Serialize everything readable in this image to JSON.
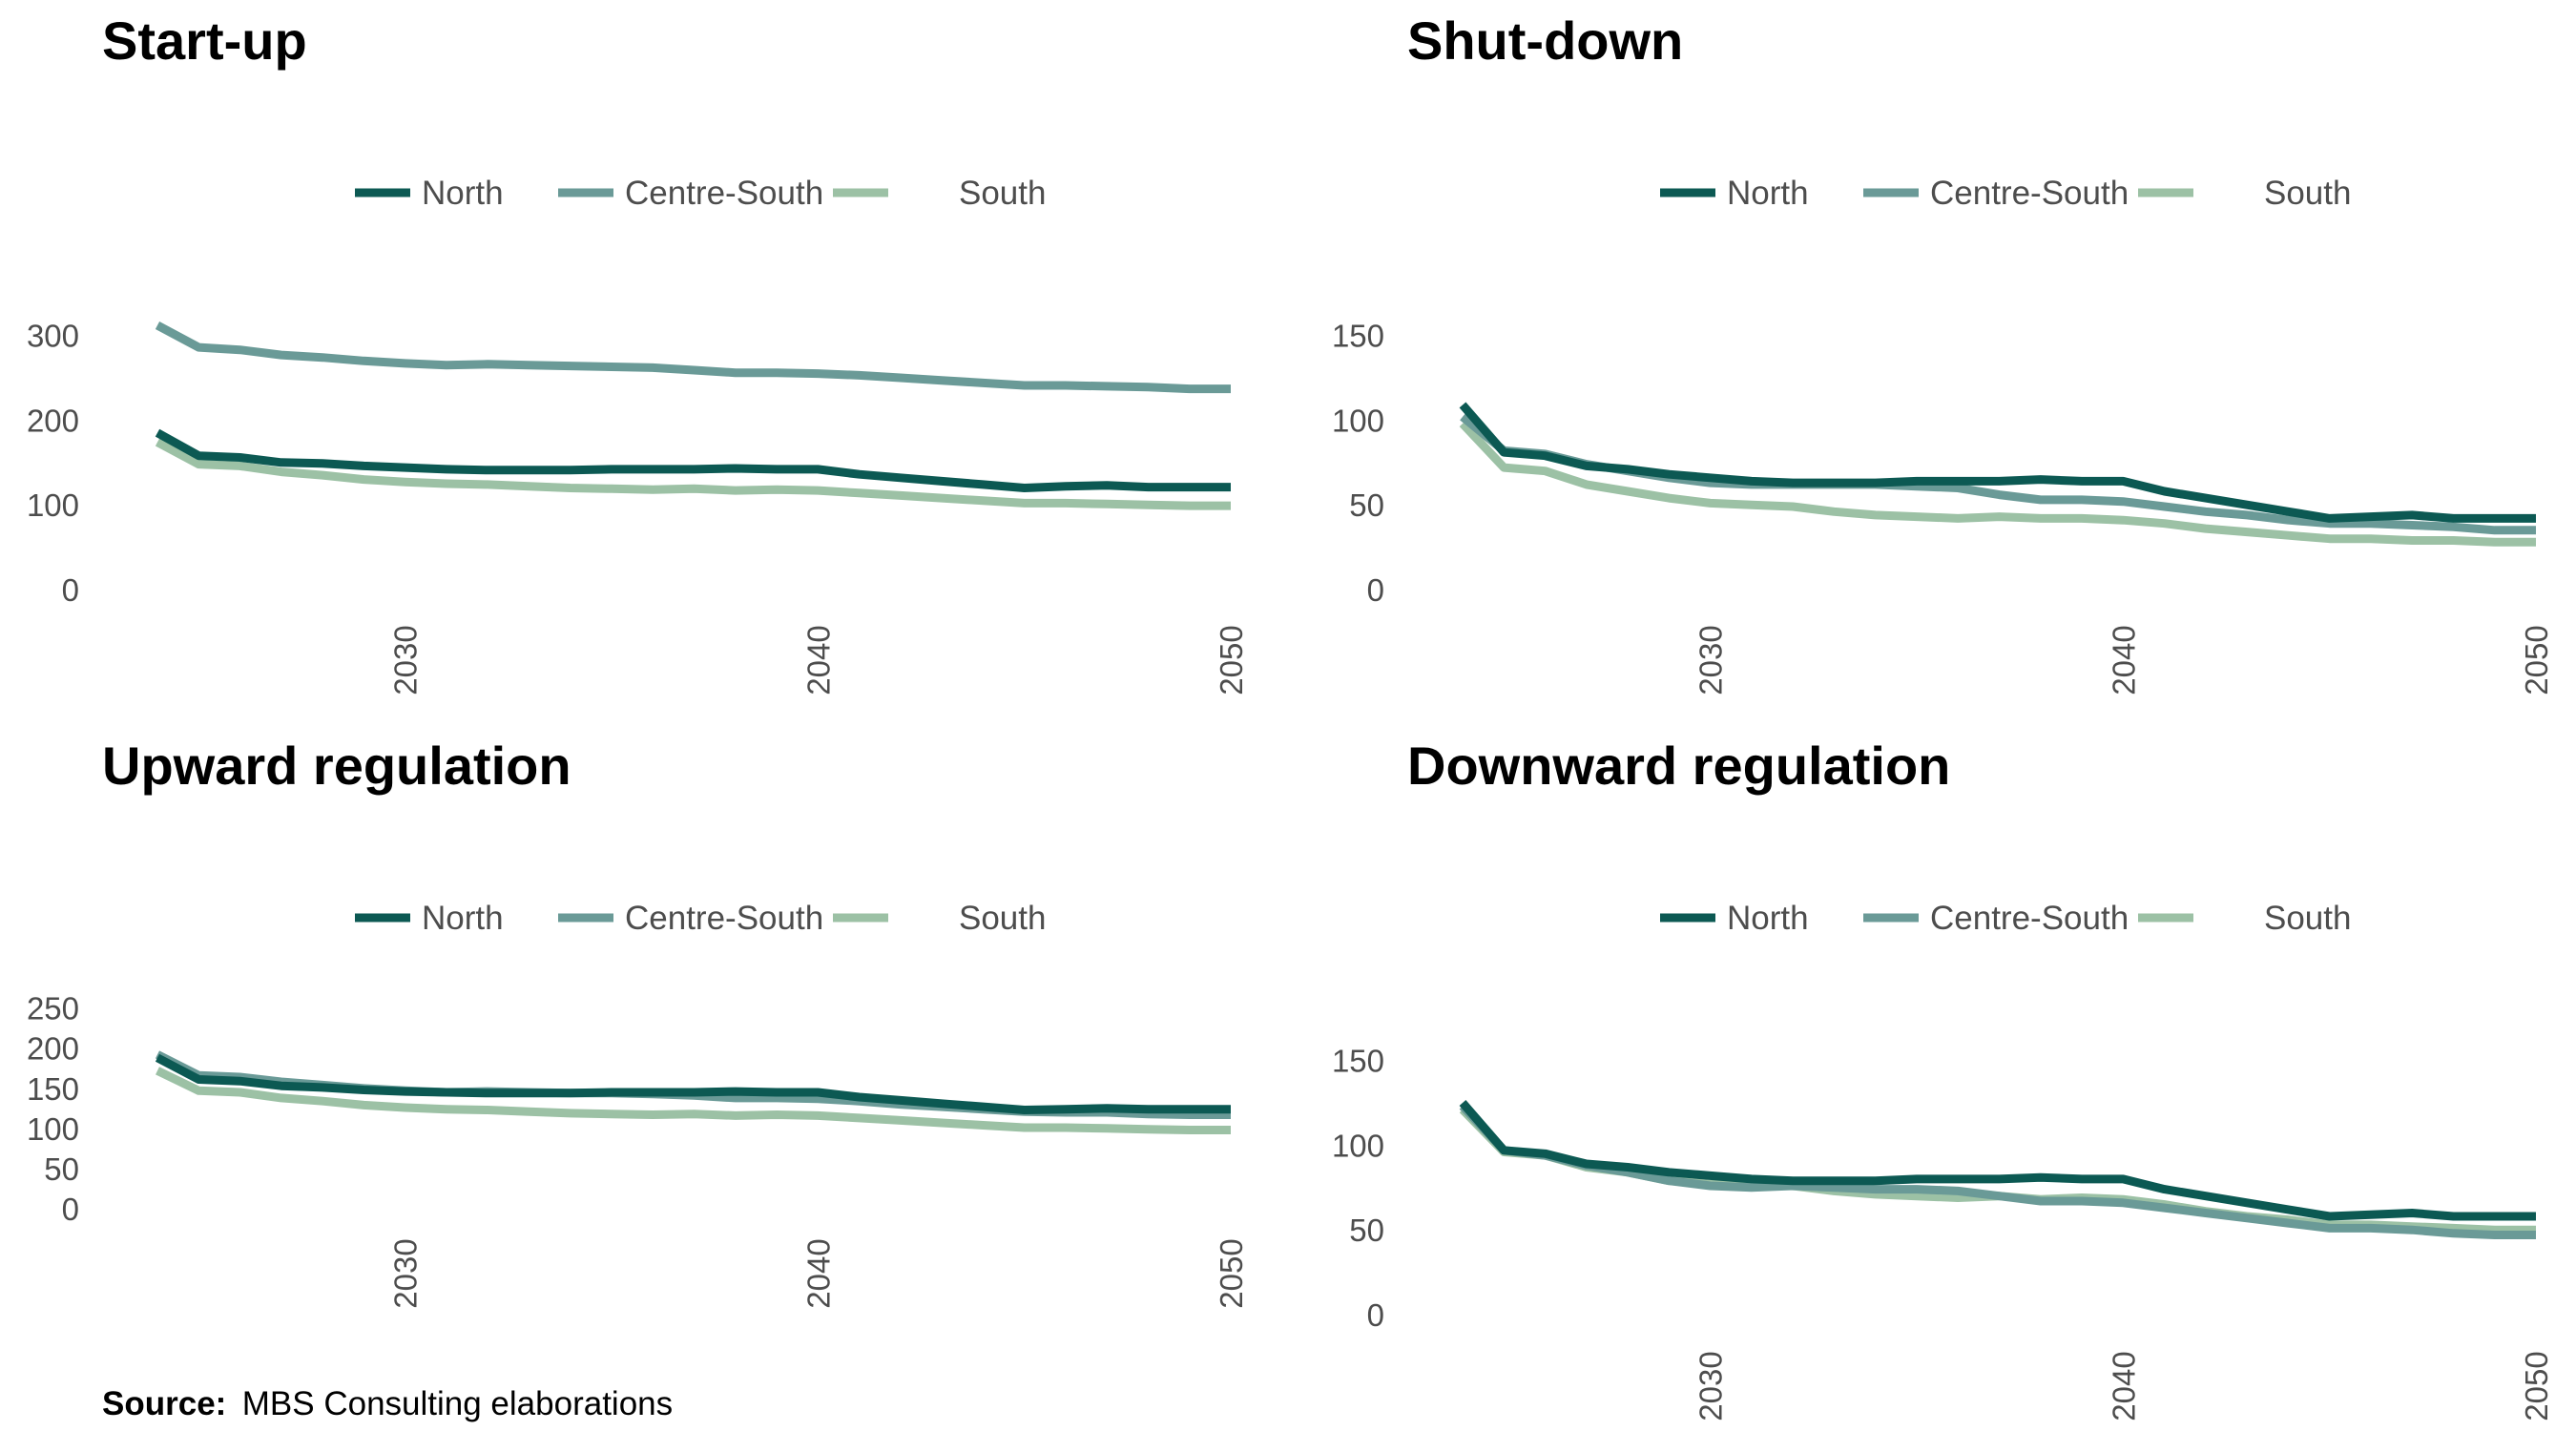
{
  "series_names": [
    "North",
    "Centre-South",
    "South"
  ],
  "colors": {
    "North": "#0c5953",
    "Centre-South": "#6a9a97",
    "South": "#9cc1a5"
  },
  "source": {
    "label": "Source:",
    "text": "MBS Consulting elaborations"
  },
  "chart_data": [
    {
      "type": "line",
      "title": "Start-up",
      "x": [
        2024,
        2025,
        2026,
        2027,
        2028,
        2029,
        2030,
        2031,
        2032,
        2033,
        2034,
        2035,
        2036,
        2037,
        2038,
        2039,
        2040,
        2041,
        2042,
        2043,
        2044,
        2045,
        2046,
        2047,
        2048,
        2049,
        2050
      ],
      "xticks": [
        2030,
        2040,
        2050
      ],
      "yticks": [
        0,
        100,
        200,
        300
      ],
      "ylim": [
        0,
        330
      ],
      "legend_position": "top",
      "series": [
        {
          "name": "North",
          "values": [
            185,
            158,
            156,
            150,
            149,
            146,
            144,
            142,
            141,
            141,
            141,
            142,
            142,
            142,
            143,
            142,
            142,
            136,
            132,
            128,
            124,
            120,
            122,
            123,
            121,
            121,
            121
          ]
        },
        {
          "name": "Centre-South",
          "values": [
            312,
            286,
            283,
            277,
            274,
            270,
            267,
            265,
            266,
            265,
            264,
            263,
            262,
            259,
            256,
            256,
            255,
            253,
            250,
            247,
            244,
            241,
            241,
            240,
            239,
            237,
            237
          ]
        },
        {
          "name": "South",
          "values": [
            174,
            148,
            146,
            139,
            135,
            130,
            127,
            125,
            124,
            122,
            120,
            119,
            118,
            119,
            117,
            118,
            117,
            114,
            111,
            108,
            105,
            102,
            102,
            101,
            100,
            99,
            99
          ]
        }
      ]
    },
    {
      "type": "line",
      "title": "Shut-down",
      "x": [
        2024,
        2025,
        2026,
        2027,
        2028,
        2029,
        2030,
        2031,
        2032,
        2033,
        2034,
        2035,
        2036,
        2037,
        2038,
        2039,
        2040,
        2041,
        2042,
        2043,
        2044,
        2045,
        2046,
        2047,
        2048,
        2049,
        2050
      ],
      "xticks": [
        2030,
        2040,
        2050
      ],
      "yticks": [
        0,
        50,
        100,
        150
      ],
      "ylim": [
        0,
        165
      ],
      "legend_position": "top",
      "series": [
        {
          "name": "North",
          "values": [
            109,
            81,
            79,
            73,
            71,
            68,
            66,
            64,
            63,
            63,
            63,
            64,
            64,
            64,
            65,
            64,
            64,
            58,
            54,
            50,
            46,
            42,
            43,
            44,
            42,
            42,
            42
          ]
        },
        {
          "name": "Centre-South",
          "values": [
            102,
            82,
            80,
            74,
            70,
            66,
            63,
            62,
            62,
            62,
            62,
            61,
            60,
            56,
            53,
            53,
            52,
            49,
            46,
            44,
            41,
            39,
            39,
            38,
            37,
            35,
            35
          ]
        },
        {
          "name": "South",
          "values": [
            98,
            72,
            70,
            62,
            58,
            54,
            51,
            50,
            49,
            46,
            44,
            43,
            42,
            43,
            42,
            42,
            41,
            39,
            36,
            34,
            32,
            30,
            30,
            29,
            29,
            28,
            28
          ]
        }
      ]
    },
    {
      "type": "line",
      "title": "Upward regulation",
      "x": [
        2024,
        2025,
        2026,
        2027,
        2028,
        2029,
        2030,
        2031,
        2032,
        2033,
        2034,
        2035,
        2036,
        2037,
        2038,
        2039,
        2040,
        2041,
        2042,
        2043,
        2044,
        2045,
        2046,
        2047,
        2048,
        2049,
        2050
      ],
      "xticks": [
        2030,
        2040,
        2050
      ],
      "yticks": [
        0,
        50,
        100,
        150,
        200,
        250
      ],
      "ylim": [
        0,
        265
      ],
      "legend_position": "top",
      "series": [
        {
          "name": "North",
          "values": [
            188,
            161,
            159,
            153,
            151,
            148,
            146,
            145,
            144,
            144,
            144,
            145,
            145,
            145,
            146,
            145,
            145,
            139,
            135,
            131,
            127,
            123,
            124,
            125,
            124,
            124,
            124
          ]
        },
        {
          "name": "Centre-South",
          "values": [
            192,
            166,
            164,
            158,
            154,
            150,
            147,
            145,
            146,
            145,
            144,
            144,
            143,
            141,
            138,
            138,
            137,
            134,
            130,
            127,
            124,
            121,
            120,
            120,
            118,
            117,
            117
          ]
        },
        {
          "name": "South",
          "values": [
            172,
            147,
            145,
            138,
            134,
            129,
            126,
            124,
            123,
            121,
            119,
            118,
            117,
            118,
            116,
            117,
            116,
            113,
            110,
            107,
            104,
            101,
            101,
            100,
            99,
            98,
            98
          ]
        }
      ]
    },
    {
      "type": "line",
      "title": "Downward regulation",
      "x": [
        2024,
        2025,
        2026,
        2027,
        2028,
        2029,
        2030,
        2031,
        2032,
        2033,
        2034,
        2035,
        2036,
        2037,
        2038,
        2039,
        2040,
        2041,
        2042,
        2043,
        2044,
        2045,
        2046,
        2047,
        2048,
        2049,
        2050
      ],
      "xticks": [
        2030,
        2040,
        2050
      ],
      "yticks": [
        0,
        50,
        100,
        150
      ],
      "ylim": [
        0,
        165
      ],
      "legend_position": "top",
      "series": [
        {
          "name": "North",
          "values": [
            125,
            97,
            95,
            89,
            87,
            84,
            82,
            80,
            79,
            79,
            79,
            80,
            80,
            80,
            81,
            80,
            80,
            74,
            70,
            66,
            62,
            58,
            59,
            60,
            58,
            58,
            58
          ]
        },
        {
          "name": "Centre-South",
          "values": [
            123,
            97,
            94,
            88,
            84,
            79,
            76,
            75,
            76,
            75,
            74,
            74,
            73,
            70,
            67,
            67,
            66,
            63,
            60,
            57,
            54,
            51,
            51,
            50,
            48,
            47,
            47
          ]
        },
        {
          "name": "South",
          "values": [
            121,
            96,
            94,
            87,
            84,
            79,
            77,
            76,
            76,
            73,
            71,
            70,
            69,
            70,
            68,
            69,
            68,
            65,
            61,
            58,
            56,
            53,
            53,
            52,
            51,
            50,
            50
          ]
        }
      ]
    }
  ]
}
